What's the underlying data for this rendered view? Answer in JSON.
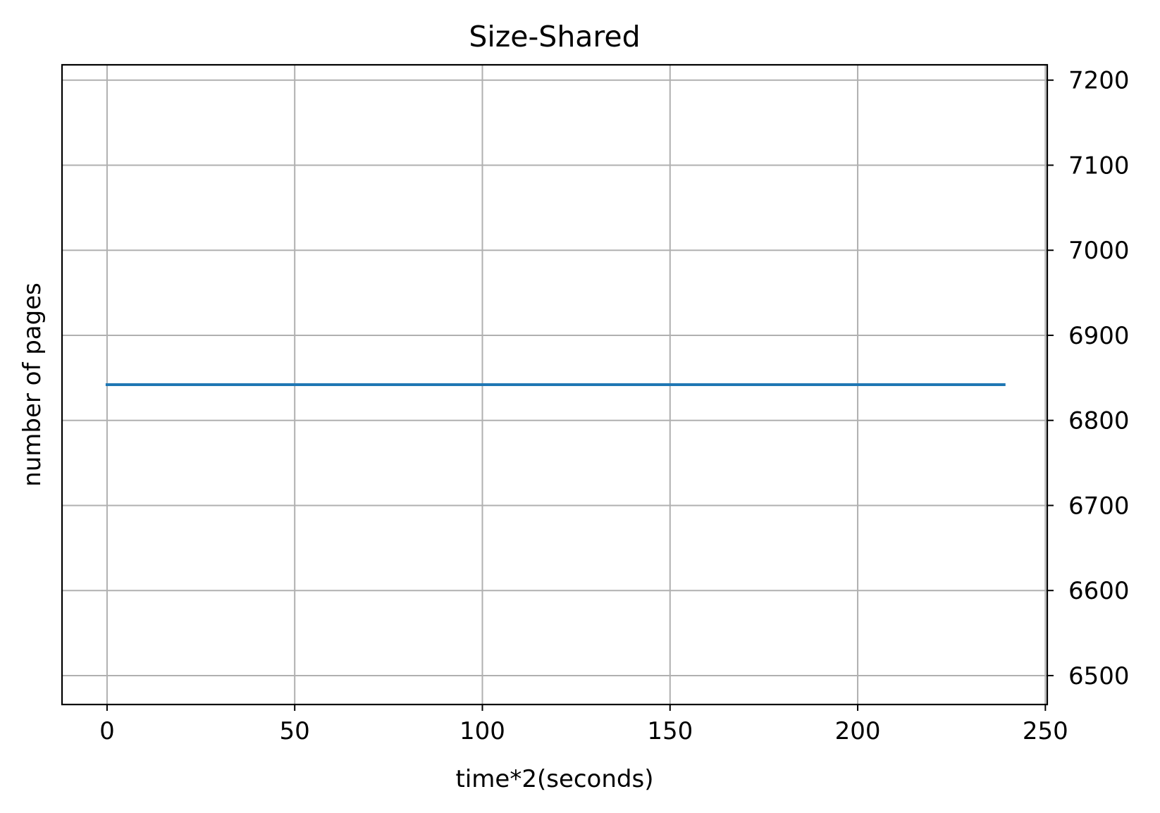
{
  "chart_data": {
    "type": "line",
    "title": "Size-Shared",
    "xlabel": "time*2(seconds)",
    "ylabel": "number of pages",
    "y_axis_side": "right",
    "xlim": [
      -12,
      250.5
    ],
    "ylim": [
      6466,
      7218
    ],
    "xticks": [
      0,
      50,
      100,
      150,
      200,
      250
    ],
    "yticks": [
      6500,
      6600,
      6700,
      6800,
      6900,
      7000,
      7100,
      7200
    ],
    "grid": true,
    "series": [
      {
        "color": "#1f77b4",
        "x": [
          0,
          239
        ],
        "y": [
          6842,
          6842
        ]
      }
    ]
  }
}
